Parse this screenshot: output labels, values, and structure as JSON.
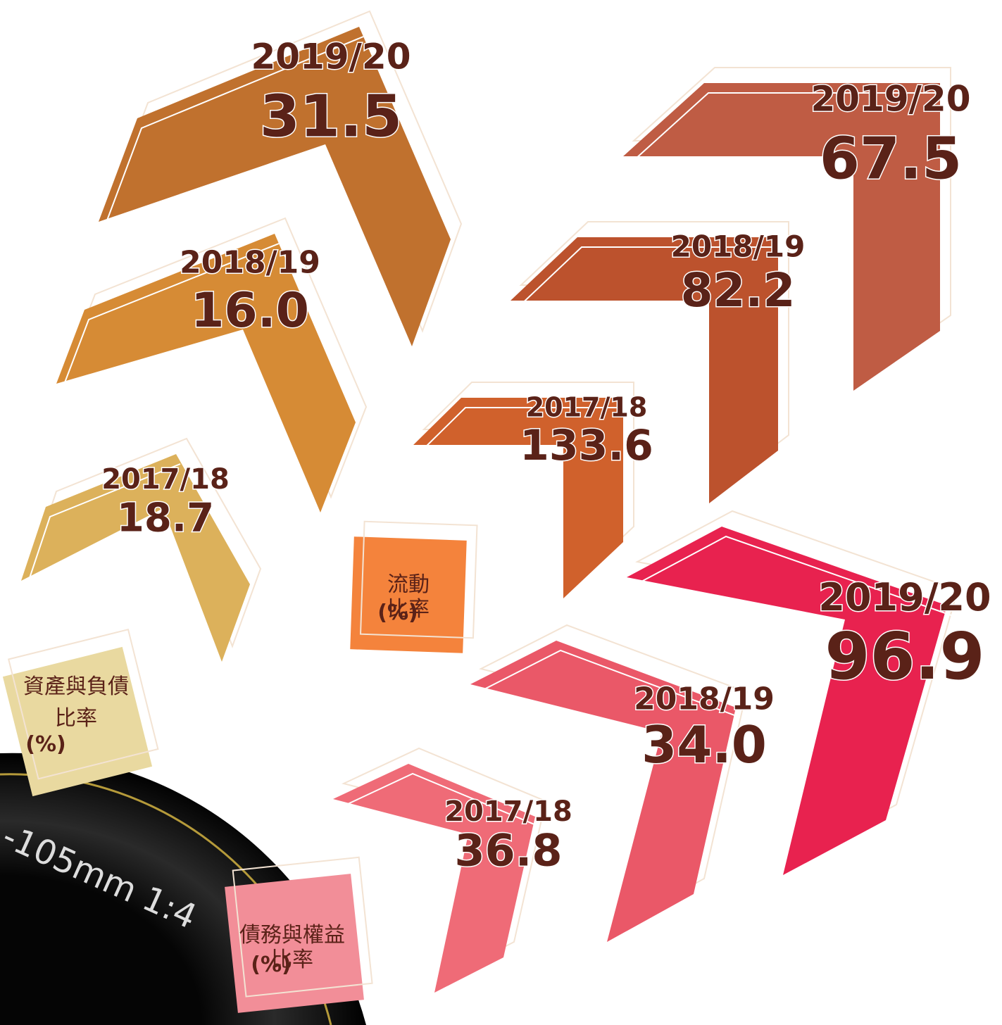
{
  "groups": [
    {
      "title_lines": [
        "資產與負債",
        "比率"
      ],
      "unit": "(%)",
      "box_color": "#e9d9a0",
      "items": [
        {
          "period": "2019/20",
          "value": "31.5",
          "color": "#c0712e"
        },
        {
          "period": "2018/19",
          "value": "16.0",
          "color": "#d68b35"
        },
        {
          "period": "2017/18",
          "value": "18.7",
          "color": "#dcb15b"
        }
      ]
    },
    {
      "title_lines": [
        "流動",
        "比率"
      ],
      "unit": "(%)",
      "box_color": "#f4833c",
      "items": [
        {
          "period": "2019/20",
          "value": "67.5",
          "color": "#bf5c44"
        },
        {
          "period": "2018/19",
          "value": "82.2",
          "color": "#bc522d"
        },
        {
          "period": "2017/18",
          "value": "133.6",
          "color": "#d0612c"
        }
      ]
    },
    {
      "title_lines": [
        "債務與權益",
        "比率"
      ],
      "unit": "(%)",
      "box_color": "#f28e98",
      "items": [
        {
          "period": "2019/20",
          "value": "96.9",
          "color": "#e8224f"
        },
        {
          "period": "2018/19",
          "value": "34.0",
          "color": "#ea5868"
        },
        {
          "period": "2017/18",
          "value": "36.8",
          "color": "#ef6b77"
        }
      ]
    }
  ],
  "lens_text": "-105mm 1:4"
}
